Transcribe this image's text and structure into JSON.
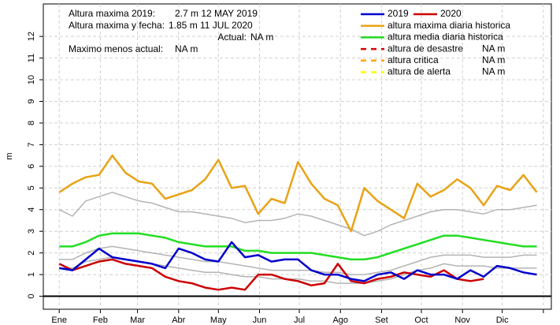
{
  "chart_data": {
    "type": "line",
    "y_label": "m",
    "x": [
      0,
      10,
      20,
      30,
      40,
      50,
      60,
      70,
      80,
      90,
      100,
      110,
      120,
      130,
      140,
      150,
      160,
      170,
      180,
      190,
      200,
      210,
      220,
      230,
      240,
      250,
      260,
      270,
      280,
      290,
      300,
      310,
      320,
      330,
      340,
      350,
      360
    ],
    "xlim": [
      -12,
      371
    ],
    "xticks": [
      {
        "value": 0,
        "label": "Ene"
      },
      {
        "value": 31,
        "label": "Feb"
      },
      {
        "value": 59,
        "label": "Mar"
      },
      {
        "value": 90,
        "label": "Abr"
      },
      {
        "value": 120,
        "label": "May"
      },
      {
        "value": 151,
        "label": "Jun"
      },
      {
        "value": 181,
        "label": "Jul"
      },
      {
        "value": 212,
        "label": "Ago"
      },
      {
        "value": 243,
        "label": "Set"
      },
      {
        "value": 273,
        "label": "Oct"
      },
      {
        "value": 304,
        "label": "Nov"
      },
      {
        "value": 334,
        "label": "Dic"
      },
      {
        "value": 365,
        "label": null
      }
    ],
    "ylim": [
      -0.6,
      13.5
    ],
    "yticks": [
      0,
      1,
      2,
      3,
      4,
      5,
      6,
      7,
      8,
      9,
      10,
      11,
      12
    ],
    "grid": true,
    "baseline": 0,
    "series": [
      {
        "name": "2019",
        "color": "#0000cc",
        "width": 2.5,
        "values": [
          1.3,
          1.2,
          1.7,
          2.2,
          1.8,
          1.7,
          1.6,
          1.5,
          1.3,
          2.2,
          2.0,
          1.7,
          1.6,
          2.5,
          1.8,
          1.9,
          1.6,
          1.7,
          1.7,
          1.2,
          1.0,
          1.0,
          0.8,
          0.7,
          1.0,
          1.1,
          0.8,
          1.2,
          1.0,
          1.0,
          0.8,
          1.2,
          0.9,
          1.4,
          1.3,
          1.1,
          1.0
        ]
      },
      {
        "name": "2020",
        "color": "#cc0000",
        "width": 2.5,
        "values": [
          1.5,
          1.2,
          1.4,
          1.6,
          1.7,
          1.5,
          1.4,
          1.3,
          0.9,
          0.7,
          0.6,
          0.4,
          0.3,
          0.4,
          0.3,
          1.0,
          1.0,
          0.8,
          0.7,
          0.5,
          0.6,
          1.5,
          0.7,
          0.6,
          0.8,
          0.9,
          1.1,
          1.0,
          0.9,
          1.2,
          0.8,
          0.7,
          0.8,
          null,
          null,
          null,
          null
        ]
      },
      {
        "name": "altura maxima diaria historica",
        "color": "#e8a317",
        "width": 2.5,
        "values": [
          4.8,
          5.2,
          5.5,
          5.6,
          6.5,
          5.7,
          5.3,
          5.2,
          4.5,
          4.7,
          4.9,
          5.4,
          6.3,
          5.0,
          5.1,
          3.8,
          4.5,
          4.3,
          6.2,
          5.2,
          4.5,
          4.2,
          3.0,
          5.0,
          4.4,
          4.0,
          3.6,
          5.2,
          4.6,
          4.9,
          5.4,
          5.0,
          4.2,
          5.1,
          4.9,
          5.6,
          4.8
        ]
      },
      {
        "name": "altura media diaria historica",
        "color": "#22dd22",
        "width": 2.5,
        "values": [
          2.3,
          2.3,
          2.5,
          2.8,
          2.9,
          2.9,
          2.9,
          2.8,
          2.7,
          2.5,
          2.4,
          2.3,
          2.3,
          2.3,
          2.1,
          2.1,
          2.0,
          2.0,
          2.0,
          2.0,
          1.9,
          1.8,
          1.7,
          1.7,
          1.8,
          2.0,
          2.2,
          2.4,
          2.6,
          2.8,
          2.8,
          2.7,
          2.6,
          2.5,
          2.4,
          2.3,
          2.3
        ]
      },
      {
        "color": "#b4b4b4",
        "width": 1.5,
        "values": [
          4.0,
          3.7,
          4.4,
          4.6,
          4.8,
          4.6,
          4.4,
          4.3,
          4.1,
          3.9,
          3.9,
          3.8,
          3.7,
          3.6,
          3.4,
          3.5,
          3.5,
          3.6,
          3.8,
          3.7,
          3.5,
          3.3,
          3.1,
          2.8,
          3.0,
          3.3,
          3.5,
          3.7,
          3.9,
          4.0,
          4.0,
          3.9,
          3.8,
          4.0,
          4.0,
          4.1,
          4.2
        ]
      },
      {
        "color": "#b4b4b4",
        "width": 1.5,
        "values": [
          1.7,
          1.7,
          2.0,
          2.2,
          2.3,
          2.2,
          2.1,
          2.0,
          1.9,
          1.8,
          1.7,
          1.6,
          1.6,
          1.5,
          1.4,
          1.3,
          1.2,
          1.2,
          1.2,
          1.2,
          1.1,
          1.1,
          1.0,
          1.0,
          1.1,
          1.2,
          1.4,
          1.6,
          1.8,
          1.9,
          1.9,
          1.9,
          1.8,
          1.8,
          1.8,
          1.9,
          1.9
        ]
      },
      {
        "color": "#b4b4b4",
        "width": 1.5,
        "values": [
          1.3,
          1.3,
          1.6,
          1.7,
          1.8,
          1.7,
          1.6,
          1.5,
          1.4,
          1.3,
          1.2,
          1.1,
          1.1,
          1.0,
          0.9,
          0.9,
          0.8,
          0.8,
          0.8,
          0.7,
          0.7,
          0.6,
          0.6,
          0.6,
          0.7,
          0.8,
          1.0,
          1.2,
          1.3,
          1.5,
          1.4,
          1.4,
          1.4,
          1.3,
          1.3,
          1.3,
          1.3
        ]
      }
    ],
    "thresholds": [
      {
        "name": "altura de desastre",
        "color": "#e00000",
        "label": "NA m"
      },
      {
        "name": "altura critica",
        "color": "#ffa500",
        "label": "NA m"
      },
      {
        "name": "altura de alerta",
        "color": "#ffff00",
        "label": "NA m"
      }
    ],
    "annotations": [
      {
        "label": "Altura maxima 2019:",
        "value": "2.7 m 12 MAY 2019"
      },
      {
        "label": "Altura maxima y fecha:",
        "value": "1.85 m 11 JUL 2020"
      },
      {
        "label": "Actual:",
        "value": "NA m"
      },
      {
        "label": "Maximo menos actual:",
        "value": "NA m"
      }
    ]
  }
}
